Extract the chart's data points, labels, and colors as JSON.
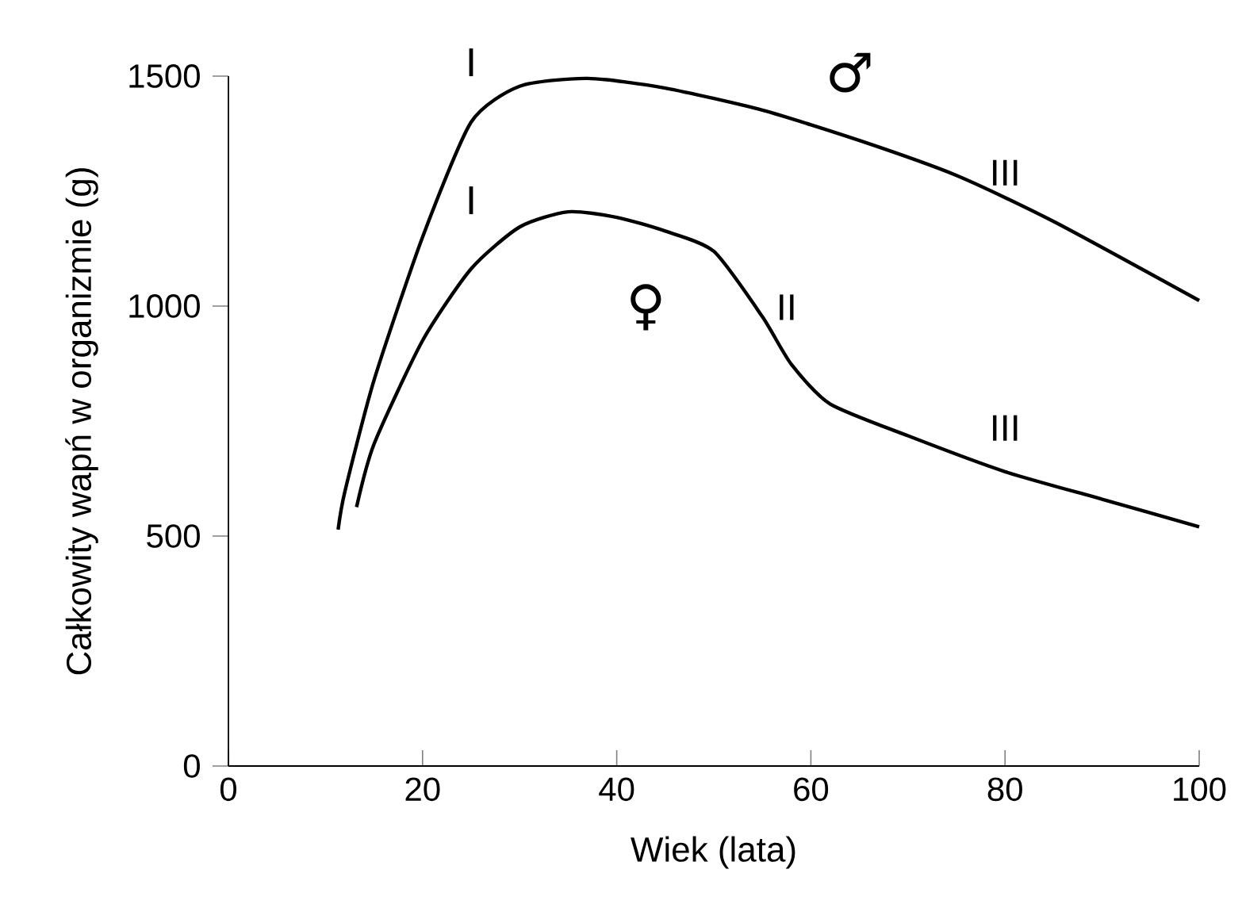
{
  "chart_data": {
    "type": "line",
    "xlabel": "Wiek (lata)",
    "ylabel": "Całkowity wapń w organizmie (g)",
    "xlim": [
      0,
      100
    ],
    "ylim": [
      0,
      1500
    ],
    "xticks": [
      0,
      20,
      40,
      60,
      80,
      100
    ],
    "yticks": [
      0,
      500,
      1000,
      1500
    ],
    "grid": false,
    "marker": "none",
    "line_style": "solid",
    "series": [
      {
        "color": "#000000",
        "x": [
          11.3,
          12,
          15,
          20,
          25,
          30,
          37,
          45,
          55,
          65,
          75,
          85,
          100
        ],
        "values": [
          514,
          597,
          839,
          1150,
          1400,
          1478,
          1495,
          1474,
          1426,
          1360,
          1284,
          1184,
          1012
        ]
      },
      {
        "color": "#000000",
        "x": [
          13.2,
          15,
          20,
          25,
          30,
          35,
          40,
          45,
          50,
          55,
          58,
          62,
          70,
          80,
          90,
          100
        ],
        "values": [
          563,
          700,
          925,
          1081,
          1172,
          1205,
          1193,
          1163,
          1119,
          977,
          873,
          787,
          718,
          640,
          580,
          520
        ]
      }
    ],
    "annotations": [
      "I",
      "I",
      "II",
      "III",
      "III",
      "♂",
      "♀"
    ]
  }
}
